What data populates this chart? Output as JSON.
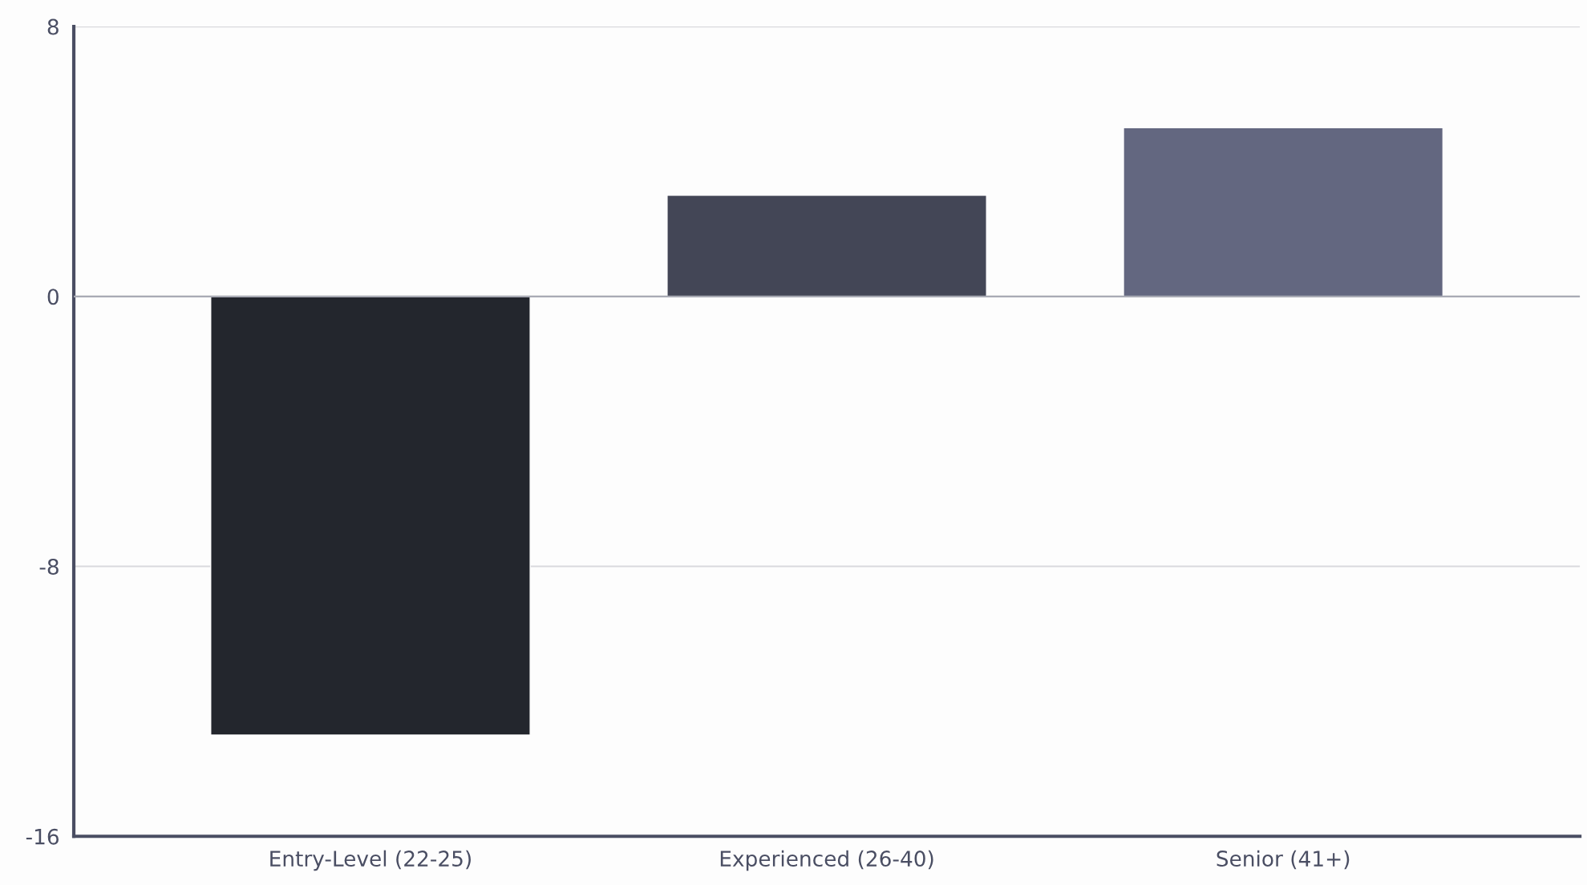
{
  "chart_data": {
    "type": "bar",
    "categories": [
      "Entry-Level (22-25)",
      "Experienced (26-40)",
      "Senior (41+)"
    ],
    "values": [
      -13,
      3,
      5
    ],
    "colors": [
      "#23262d",
      "#434656",
      "#636780"
    ],
    "ylim": [
      -16,
      8
    ],
    "yticks": [
      -16,
      -8,
      0,
      8
    ],
    "grid": "y"
  }
}
